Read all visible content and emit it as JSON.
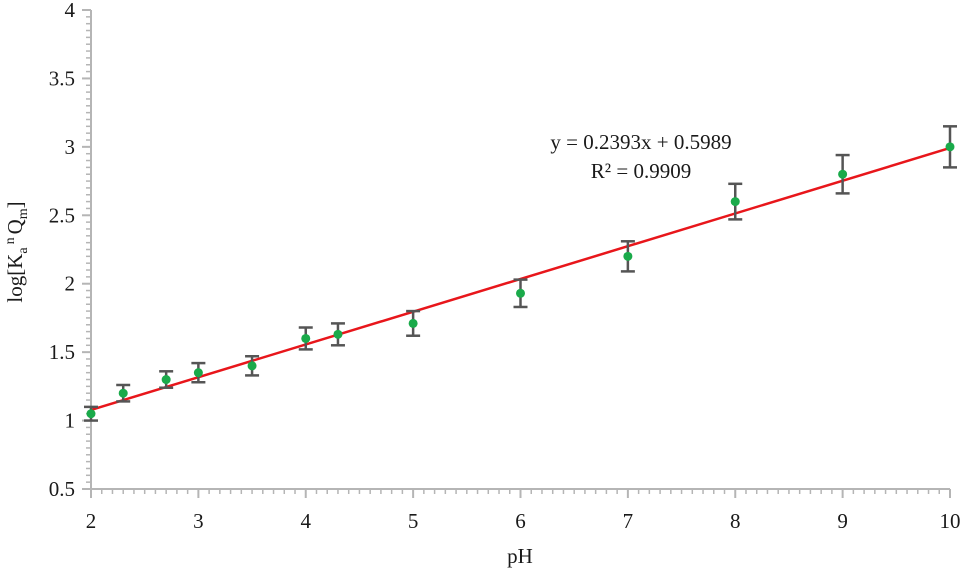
{
  "chart_data": {
    "type": "scatter",
    "title": "",
    "xlabel": "pH",
    "ylabel": {
      "base": "log[K",
      "sub1": "a",
      "sup": "n",
      "mid": "Q",
      "sub2": "m",
      "end": "]"
    },
    "xlim": [
      2,
      10
    ],
    "ylim": [
      0.5,
      4
    ],
    "x_ticks": [
      "2",
      "3",
      "4",
      "5",
      "6",
      "7",
      "8",
      "9",
      "10"
    ],
    "y_ticks": [
      "0.5",
      "1",
      "1.5",
      "2",
      "2.5",
      "3",
      "3.5",
      "4"
    ],
    "grid": false,
    "legend": "none",
    "series": [
      {
        "marker_color": "#1aaa4a",
        "errorbar_color": "#555555",
        "points": [
          {
            "x": 2.0,
            "y": 1.05,
            "err": 0.05
          },
          {
            "x": 2.3,
            "y": 1.2,
            "err": 0.06
          },
          {
            "x": 2.7,
            "y": 1.3,
            "err": 0.06
          },
          {
            "x": 3.0,
            "y": 1.35,
            "err": 0.07
          },
          {
            "x": 3.5,
            "y": 1.4,
            "err": 0.07
          },
          {
            "x": 4.0,
            "y": 1.6,
            "err": 0.08
          },
          {
            "x": 4.3,
            "y": 1.63,
            "err": 0.08
          },
          {
            "x": 5.0,
            "y": 1.71,
            "err": 0.09
          },
          {
            "x": 6.0,
            "y": 1.93,
            "err": 0.1
          },
          {
            "x": 7.0,
            "y": 2.2,
            "err": 0.11
          },
          {
            "x": 8.0,
            "y": 2.6,
            "err": 0.13
          },
          {
            "x": 9.0,
            "y": 2.8,
            "err": 0.14
          },
          {
            "x": 10.0,
            "y": 3.0,
            "err": 0.15
          }
        ]
      }
    ],
    "trendline": {
      "slope": 0.2393,
      "intercept": 0.5989,
      "color": "#e8161b",
      "equation": "y = 0.2393x + 0.5989",
      "r_squared": "R² = 0.9909"
    }
  }
}
